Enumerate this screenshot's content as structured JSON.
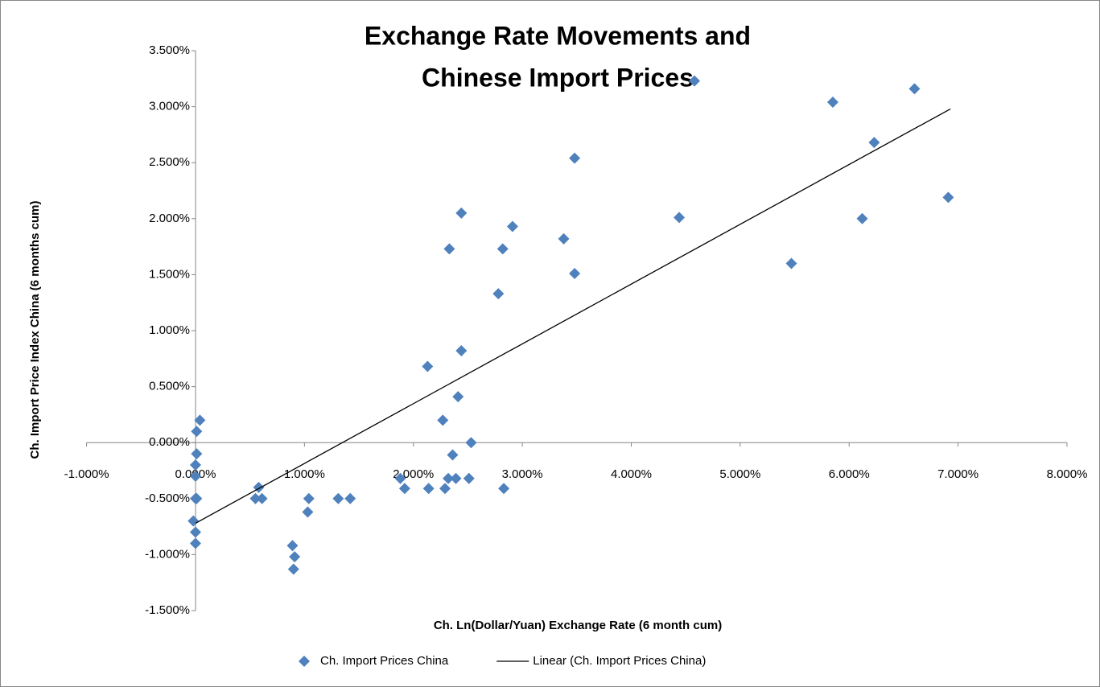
{
  "chart_data": {
    "type": "scatter",
    "title": [
      "Exchange Rate Movements and",
      "Chinese Import Prices"
    ],
    "x_label": "Ch. Ln(Dollar/Yuan)  Exchange  Rate (6 month cum)",
    "y_label": "Ch. Import Price Index China  (6 months cum)",
    "xlim": [
      -1,
      8
    ],
    "ylim": [
      -1.5,
      3.5
    ],
    "xticks": [
      {
        "value": -1,
        "label": "-1.000%"
      },
      {
        "value": 0,
        "label": "0.000%"
      },
      {
        "value": 1,
        "label": "1.000%"
      },
      {
        "value": 2,
        "label": "2.000%"
      },
      {
        "value": 3,
        "label": "3.000%"
      },
      {
        "value": 4,
        "label": "4.000%"
      },
      {
        "value": 5,
        "label": "5.000%"
      },
      {
        "value": 6,
        "label": "6.000%"
      },
      {
        "value": 7,
        "label": "7.000%"
      },
      {
        "value": 8,
        "label": "8.000%"
      }
    ],
    "yticks": [
      {
        "value": -1.5,
        "label": "-1.500%"
      },
      {
        "value": -1,
        "label": "-1.000%"
      },
      {
        "value": -0.5,
        "label": "-0.500%"
      },
      {
        "value": 0,
        "label": "0.000%"
      },
      {
        "value": 0.5,
        "label": "0.500%"
      },
      {
        "value": 1,
        "label": "1.000%"
      },
      {
        "value": 1.5,
        "label": "1.500%"
      },
      {
        "value": 2,
        "label": "2.000%"
      },
      {
        "value": 2.5,
        "label": "2.500%"
      },
      {
        "value": 3,
        "label": "3.000%"
      },
      {
        "value": 3.5,
        "label": "3.500%"
      }
    ],
    "legend": "bottom",
    "series": [
      {
        "name": "Ch. Import  Prices China",
        "type": "scatter",
        "color": "#4f81bd",
        "x": [
          0.04,
          0.01,
          0.01,
          0,
          0,
          0,
          0.01,
          -0.02,
          0,
          0,
          0.58,
          0.55,
          0.61,
          0.89,
          0.91,
          0.9,
          1.04,
          1.03,
          1.31,
          1.42,
          1.88,
          1.92,
          2.14,
          2.29,
          2.32,
          2.39,
          2.51,
          2.53,
          2.36,
          2.27,
          2.41,
          2.44,
          2.13,
          2.33,
          2.44,
          2.78,
          2.82,
          2.83,
          2.91,
          3.38,
          3.48,
          3.48,
          4.44,
          4.58,
          5.47,
          5.85,
          6.12,
          6.23,
          6.6,
          6.91
        ],
        "values": [
          0.2,
          0.1,
          -0.1,
          -0.2,
          -0.3,
          -0.5,
          -0.5,
          -0.7,
          -0.8,
          -0.9,
          -0.4,
          -0.5,
          -0.5,
          -0.92,
          -1.02,
          -1.13,
          -0.5,
          -0.62,
          -0.5,
          -0.5,
          -0.32,
          -0.41,
          -0.41,
          -0.41,
          -0.32,
          -0.32,
          -0.32,
          0,
          -0.11,
          0.2,
          0.41,
          0.82,
          0.68,
          1.73,
          2.05,
          1.33,
          1.73,
          -0.41,
          1.93,
          1.82,
          1.51,
          2.54,
          2.01,
          3.23,
          1.6,
          3.04,
          2.0,
          2.68,
          3.16,
          2.19
        ]
      },
      {
        "name": "Linear (Ch. Import Prices China)",
        "type": "line",
        "color": "#000000",
        "x": [
          0,
          6.93
        ],
        "values": [
          -0.72,
          2.98
        ]
      }
    ]
  }
}
